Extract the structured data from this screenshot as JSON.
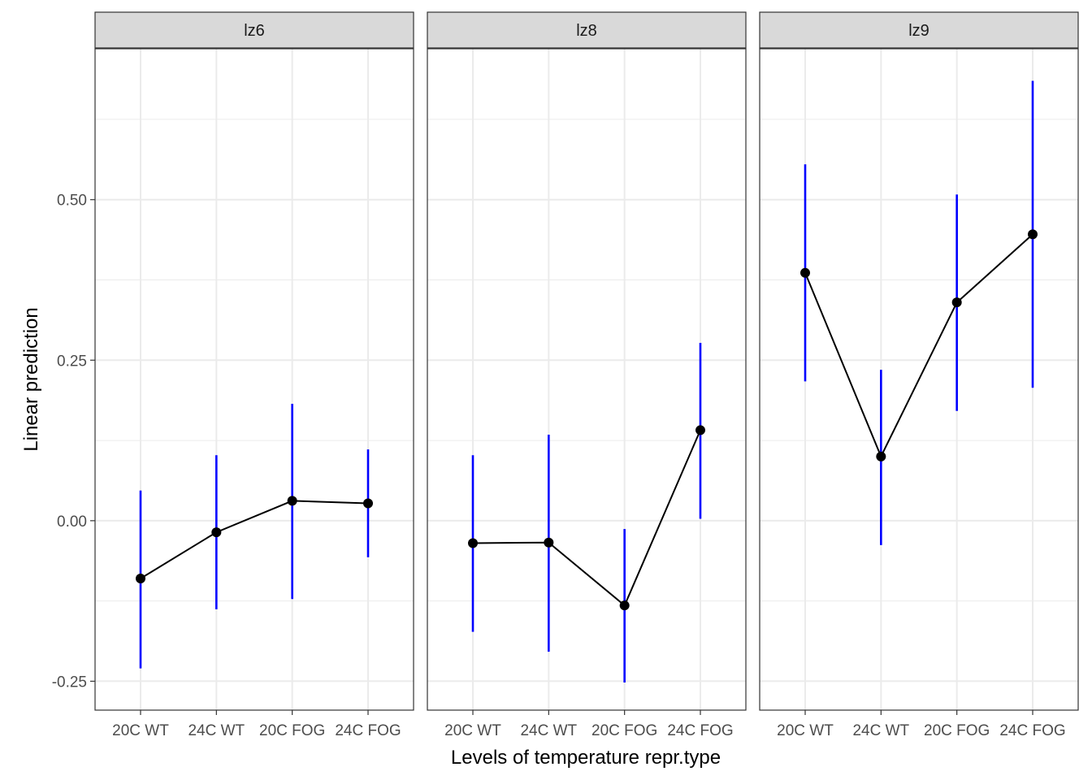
{
  "chart_data": {
    "type": "line",
    "facet_labels": [
      "lz6",
      "lz8",
      "lz9"
    ],
    "categories": [
      "20C WT",
      "24C WT",
      "20C FOG",
      "24C FOG"
    ],
    "xlabel": "Levels of temperature repr.type",
    "ylabel": "Linear prediction",
    "yticks": [
      "-0.25",
      "0.00",
      "0.25",
      "0.50"
    ],
    "ytick_values": [
      -0.25,
      0.0,
      0.25,
      0.5
    ],
    "ylim": [
      -0.295,
      0.735
    ],
    "grid": true,
    "colors": {
      "line": "#000000",
      "point": "#000000",
      "errorbar": "#0000ff",
      "strip_bg": "#d9d9d9",
      "grid": "#ebebeb"
    },
    "panels": [
      {
        "name": "lz6",
        "values": [
          -0.09,
          -0.018,
          0.031,
          0.027
        ],
        "lower": [
          -0.23,
          -0.138,
          -0.122,
          -0.057
        ],
        "upper": [
          0.047,
          0.102,
          0.182,
          0.111
        ]
      },
      {
        "name": "lz8",
        "values": [
          -0.035,
          -0.034,
          -0.132,
          0.141
        ],
        "lower": [
          -0.173,
          -0.204,
          -0.252,
          0.003
        ],
        "upper": [
          0.102,
          0.134,
          -0.013,
          0.277
        ]
      },
      {
        "name": "lz9",
        "values": [
          0.386,
          0.1,
          0.34,
          0.446
        ],
        "lower": [
          0.217,
          -0.038,
          0.171,
          0.207
        ],
        "upper": [
          0.555,
          0.235,
          0.508,
          0.685
        ]
      }
    ]
  }
}
